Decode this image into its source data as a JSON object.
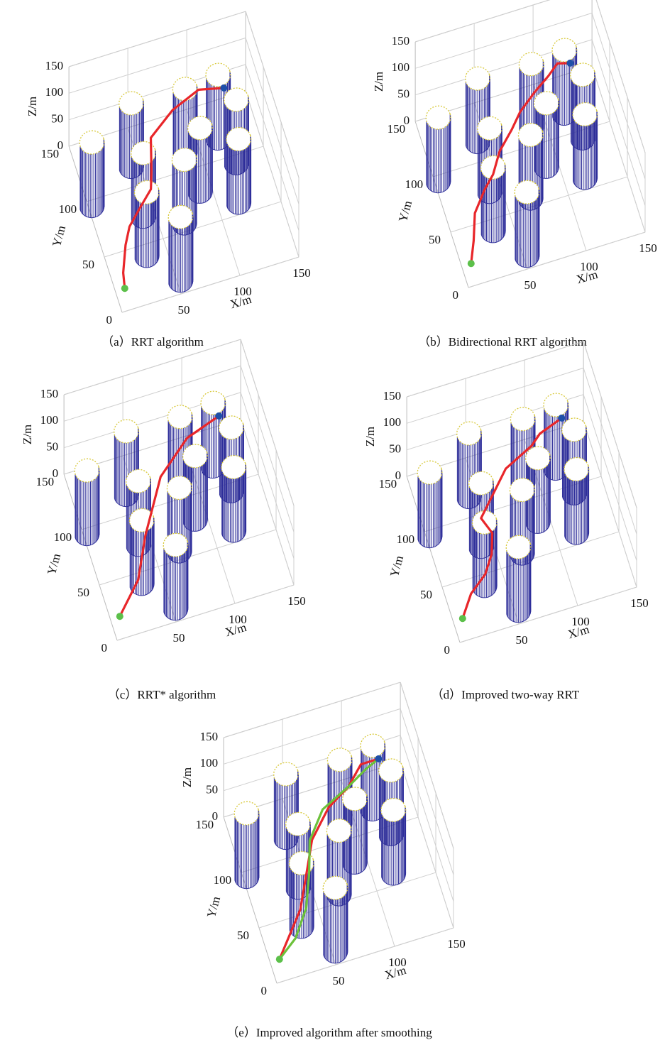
{
  "chart_data": [
    {
      "type": "path3d",
      "caption": "（a）RRT algorithm",
      "xlabel": "X/m",
      "ylabel": "Y/m",
      "zlabel": "Z/m",
      "xlim": [
        0,
        150
      ],
      "ylim": [
        0,
        150
      ],
      "zlim": [
        0,
        150
      ],
      "xticks": [
        50,
        100,
        150
      ],
      "yticks": [
        0,
        50,
        100,
        150
      ],
      "zticks": [
        0,
        50,
        100,
        150
      ],
      "grid": true,
      "obstacles": [
        {
          "x": 3,
          "y": 95,
          "r": 10,
          "h": 120
        },
        {
          "x": 43,
          "y": 117,
          "r": 10,
          "h": 120
        },
        {
          "x": 40,
          "y": 73,
          "r": 10,
          "h": 120
        },
        {
          "x": 33,
          "y": 40,
          "r": 10,
          "h": 120
        },
        {
          "x": 53,
          "y": 11,
          "r": 10,
          "h": 120
        },
        {
          "x": 88,
          "y": 115,
          "r": 10,
          "h": 120
        },
        {
          "x": 70,
          "y": 57,
          "r": 10,
          "h": 120
        },
        {
          "x": 90,
          "y": 79,
          "r": 10,
          "h": 120
        },
        {
          "x": 117,
          "y": 118,
          "r": 10,
          "h": 120
        },
        {
          "x": 125,
          "y": 93,
          "r": 10,
          "h": 120
        },
        {
          "x": 117,
          "y": 60,
          "r": 10,
          "h": 120
        }
      ],
      "start": {
        "color": "#5cc04a",
        "x": 8,
        "y": 19,
        "z": 0
      },
      "goal": {
        "color": "#1f4fa8",
        "x": 130,
        "y": 145,
        "z": 30
      },
      "series": [
        {
          "color": "#e8262a",
          "x": [
            8,
            10,
            18,
            25,
            38,
            50,
            55,
            62,
            85,
            110,
            130
          ],
          "y": [
            19,
            30,
            50,
            62,
            75,
            85,
            100,
            125,
            140,
            150,
            145
          ],
          "z": [
            0,
            5,
            10,
            15,
            15,
            20,
            20,
            25,
            30,
            30,
            30
          ]
        }
      ]
    },
    {
      "type": "path3d",
      "caption": "（b）Bidirectional RRT algorithm",
      "xlabel": "X/m",
      "ylabel": "Y/m",
      "zlabel": "Z/m",
      "xlim": [
        0,
        150
      ],
      "ylim": [
        0,
        150
      ],
      "zlim": [
        0,
        150
      ],
      "xticks": [
        50,
        100,
        150
      ],
      "yticks": [
        0,
        50,
        100,
        150
      ],
      "zticks": [
        0,
        50,
        100,
        150
      ],
      "grid": true,
      "obstacles": [
        {
          "x": 3,
          "y": 95,
          "r": 10,
          "h": 120
        },
        {
          "x": 43,
          "y": 117,
          "r": 10,
          "h": 120
        },
        {
          "x": 40,
          "y": 73,
          "r": 10,
          "h": 120
        },
        {
          "x": 33,
          "y": 40,
          "r": 10,
          "h": 120
        },
        {
          "x": 53,
          "y": 11,
          "r": 10,
          "h": 120
        },
        {
          "x": 88,
          "y": 115,
          "r": 10,
          "h": 120
        },
        {
          "x": 70,
          "y": 57,
          "r": 10,
          "h": 120
        },
        {
          "x": 90,
          "y": 79,
          "r": 10,
          "h": 120
        },
        {
          "x": 117,
          "y": 118,
          "r": 10,
          "h": 120
        },
        {
          "x": 125,
          "y": 93,
          "r": 10,
          "h": 120
        },
        {
          "x": 117,
          "y": 60,
          "r": 10,
          "h": 120
        }
      ],
      "start": {
        "color": "#5cc04a",
        "x": 8,
        "y": 19,
        "z": 0
      },
      "goal": {
        "color": "#1f4fa8",
        "x": 130,
        "y": 145,
        "z": 30
      },
      "series": [
        {
          "color": "#e8262a",
          "x": [
            8,
            15,
            22,
            35,
            45,
            55,
            70,
            80,
            95,
            110,
            120,
            130
          ],
          "y": [
            19,
            35,
            55,
            70,
            80,
            95,
            110,
            120,
            130,
            140,
            148,
            145
          ],
          "z": [
            0,
            5,
            10,
            15,
            15,
            20,
            20,
            25,
            30,
            30,
            30,
            30
          ]
        }
      ]
    },
    {
      "type": "path3d",
      "caption": "（c）RRT* algorithm",
      "xlabel": "X/m",
      "ylabel": "Y/m",
      "zlabel": "Z/m",
      "xlim": [
        0,
        150
      ],
      "ylim": [
        0,
        150
      ],
      "zlim": [
        0,
        150
      ],
      "xticks": [
        50,
        100,
        150
      ],
      "yticks": [
        0,
        50,
        100,
        150
      ],
      "zticks": [
        0,
        50,
        100,
        150
      ],
      "grid": true,
      "obstacles": [
        {
          "x": 3,
          "y": 95,
          "r": 10,
          "h": 120
        },
        {
          "x": 43,
          "y": 117,
          "r": 10,
          "h": 120
        },
        {
          "x": 40,
          "y": 73,
          "r": 10,
          "h": 120
        },
        {
          "x": 33,
          "y": 40,
          "r": 10,
          "h": 120
        },
        {
          "x": 53,
          "y": 11,
          "r": 10,
          "h": 120
        },
        {
          "x": 88,
          "y": 115,
          "r": 10,
          "h": 120
        },
        {
          "x": 70,
          "y": 57,
          "r": 10,
          "h": 120
        },
        {
          "x": 90,
          "y": 79,
          "r": 10,
          "h": 120
        },
        {
          "x": 117,
          "y": 118,
          "r": 10,
          "h": 120
        },
        {
          "x": 125,
          "y": 93,
          "r": 10,
          "h": 120
        },
        {
          "x": 117,
          "y": 60,
          "r": 10,
          "h": 120
        }
      ],
      "start": {
        "color": "#5cc04a",
        "x": 8,
        "y": 19,
        "z": 0
      },
      "goal": {
        "color": "#1f4fa8",
        "x": 130,
        "y": 145,
        "z": 30
      },
      "series": [
        {
          "color": "#e8262a",
          "x": [
            8,
            30,
            45,
            70,
            100,
            130
          ],
          "y": [
            19,
            40,
            70,
            110,
            135,
            145
          ],
          "z": [
            0,
            10,
            20,
            30,
            30,
            30
          ]
        }
      ]
    },
    {
      "type": "path3d",
      "caption": "（d）Improved two-way RRT",
      "xlabel": "X/m",
      "ylabel": "Y/m",
      "zlabel": "Z/m",
      "xlim": [
        0,
        150
      ],
      "ylim": [
        0,
        150
      ],
      "zlim": [
        0,
        150
      ],
      "xticks": [
        50,
        100,
        150
      ],
      "yticks": [
        0,
        50,
        100,
        150
      ],
      "zticks": [
        0,
        50,
        100,
        150
      ],
      "grid": true,
      "obstacles": [
        {
          "x": 3,
          "y": 95,
          "r": 10,
          "h": 120
        },
        {
          "x": 43,
          "y": 117,
          "r": 10,
          "h": 120
        },
        {
          "x": 40,
          "y": 73,
          "r": 10,
          "h": 120
        },
        {
          "x": 33,
          "y": 40,
          "r": 10,
          "h": 120
        },
        {
          "x": 53,
          "y": 11,
          "r": 10,
          "h": 120
        },
        {
          "x": 88,
          "y": 115,
          "r": 10,
          "h": 120
        },
        {
          "x": 70,
          "y": 57,
          "r": 10,
          "h": 120
        },
        {
          "x": 90,
          "y": 79,
          "r": 10,
          "h": 120
        },
        {
          "x": 117,
          "y": 118,
          "r": 10,
          "h": 120
        },
        {
          "x": 125,
          "y": 93,
          "r": 10,
          "h": 120
        },
        {
          "x": 117,
          "y": 60,
          "r": 10,
          "h": 120
        }
      ],
      "start": {
        "color": "#5cc04a",
        "x": 8,
        "y": 19,
        "z": 0
      },
      "goal": {
        "color": "#1f4fa8",
        "x": 130,
        "y": 145,
        "z": 30
      },
      "series": [
        {
          "color": "#e8262a",
          "x": [
            8,
            20,
            35,
            45,
            50,
            45,
            60,
            75,
            100,
            110,
            130
          ],
          "y": [
            19,
            35,
            45,
            60,
            75,
            90,
            105,
            120,
            130,
            140,
            145
          ],
          "z": [
            0,
            5,
            10,
            10,
            15,
            15,
            20,
            25,
            30,
            25,
            30
          ]
        }
      ]
    },
    {
      "type": "path3d",
      "caption": "（e）Improved algorithm after smoothing",
      "xlabel": "X/m",
      "ylabel": "Y/m",
      "zlabel": "Z/m",
      "xlim": [
        0,
        150
      ],
      "ylim": [
        0,
        150
      ],
      "zlim": [
        0,
        150
      ],
      "xticks": [
        50,
        100,
        150
      ],
      "yticks": [
        0,
        50,
        100,
        150
      ],
      "zticks": [
        0,
        50,
        100,
        150
      ],
      "grid": true,
      "obstacles": [
        {
          "x": 3,
          "y": 95,
          "r": 10,
          "h": 120
        },
        {
          "x": 43,
          "y": 117,
          "r": 10,
          "h": 120
        },
        {
          "x": 40,
          "y": 73,
          "r": 10,
          "h": 120
        },
        {
          "x": 33,
          "y": 40,
          "r": 10,
          "h": 120
        },
        {
          "x": 53,
          "y": 11,
          "r": 10,
          "h": 120
        },
        {
          "x": 88,
          "y": 115,
          "r": 10,
          "h": 120
        },
        {
          "x": 70,
          "y": 57,
          "r": 10,
          "h": 120
        },
        {
          "x": 90,
          "y": 79,
          "r": 10,
          "h": 120
        },
        {
          "x": 117,
          "y": 118,
          "r": 10,
          "h": 120
        },
        {
          "x": 125,
          "y": 93,
          "r": 10,
          "h": 120
        },
        {
          "x": 117,
          "y": 60,
          "r": 10,
          "h": 120
        }
      ],
      "start": {
        "color": "#5cc04a",
        "x": 8,
        "y": 19,
        "z": 0
      },
      "goal": {
        "color": "#1f4fa8",
        "x": 130,
        "y": 145,
        "z": 30
      },
      "series": [
        {
          "color": "#e8262a",
          "x": [
            8,
            35,
            50,
            60,
            80,
            100,
            115,
            130
          ],
          "y": [
            19,
            50,
            80,
            100,
            120,
            130,
            145,
            145
          ],
          "z": [
            0,
            10,
            15,
            20,
            25,
            30,
            30,
            30
          ]
        },
        {
          "color": "#6cc13a",
          "x": [
            8,
            25,
            40,
            50,
            58,
            75,
            100,
            118,
            130
          ],
          "y": [
            19,
            30,
            50,
            75,
            100,
            120,
            130,
            140,
            145
          ],
          "z": [
            0,
            5,
            10,
            15,
            20,
            25,
            30,
            30,
            30
          ]
        }
      ]
    }
  ]
}
